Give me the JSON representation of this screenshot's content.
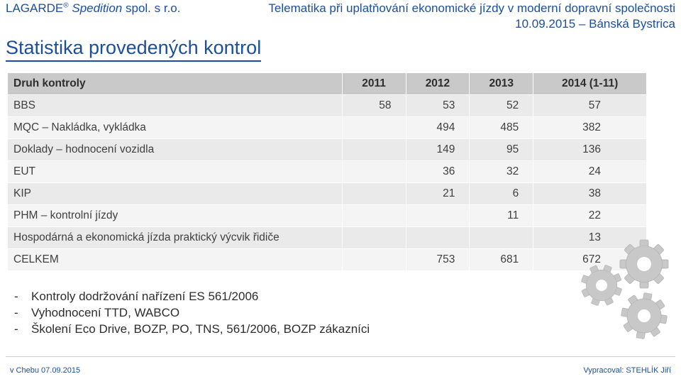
{
  "header": {
    "company_main": "LAGARDE",
    "registered_mark": "®",
    "company_italic": "Spedition",
    "company_suffix": "spol. s r.o.",
    "event_title": "Telematika při uplatňování ekonomické jízdy v moderní dopravní společnosti",
    "event_date_place": "10.09.2015 – Bánská Bystrica"
  },
  "slide_title": "Statistika provedených kontrol",
  "table": {
    "headers": [
      "Druh kontroly",
      "2011",
      "2012",
      "2013",
      "2014 (1-11)"
    ],
    "rows": [
      [
        "BBS",
        "58",
        "53",
        "52",
        "57"
      ],
      [
        "MQC – Nakládka, vykládka",
        "",
        "494",
        "485",
        "382"
      ],
      [
        "Doklady – hodnocení vozidla",
        "",
        "149",
        "95",
        "136"
      ],
      [
        "EUT",
        "",
        "36",
        "32",
        "24"
      ],
      [
        "KIP",
        "",
        "21",
        "6",
        "38"
      ],
      [
        "PHM – kontrolní jízdy",
        "",
        "",
        "11",
        "22"
      ],
      [
        "Hospodárná a ekonomická jízda praktický výcvik řidiče",
        "",
        "",
        "",
        "13"
      ],
      [
        "CELKEM",
        "",
        "753",
        "681",
        "672"
      ]
    ]
  },
  "notes": [
    "Kontroly dodržování nařízení ES 561/2006",
    "Vyhodnocení TTD, WABCO",
    "Školení Eco Drive, BOZP, PO, TNS, 561/2006, BOZP zákazníci"
  ],
  "note_bullet": "-",
  "footer": {
    "left": "v Chebu 07.09.2015",
    "right": "Vypracoval: STEHLÍK Jiří"
  },
  "decoration": {
    "icon": "gears-icon",
    "color": "#c8c8c8"
  },
  "colors": {
    "brand_blue": "#1b4f9c",
    "header_row": "#c9c9c9",
    "row_odd": "#eaeaea",
    "row_even": "#f4f4f4"
  }
}
